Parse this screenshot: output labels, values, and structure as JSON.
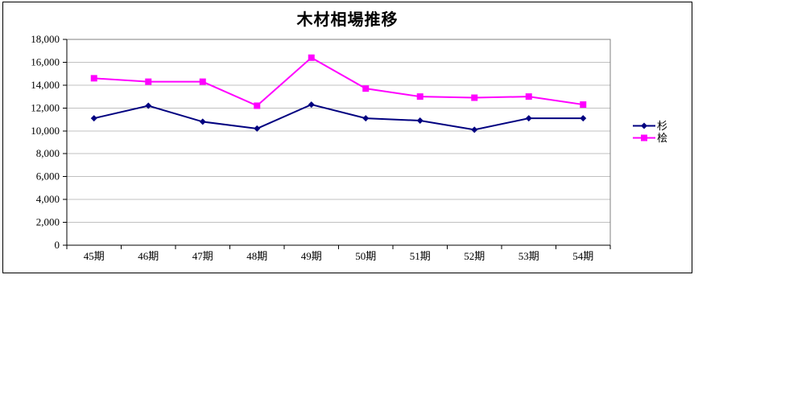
{
  "window": {
    "background": "#FFFFFF"
  },
  "chart_data": {
    "type": "line",
    "title": "木材相場推移",
    "xlabel": "",
    "ylabel": "",
    "categories": [
      "45期",
      "46期",
      "47期",
      "48期",
      "49期",
      "50期",
      "51期",
      "52期",
      "53期",
      "54期"
    ],
    "series": [
      {
        "name": "杉",
        "marker": "diamond",
        "color": "#000080",
        "values": [
          11100,
          12200,
          10800,
          10200,
          12300,
          11100,
          10900,
          10100,
          11100,
          11100
        ]
      },
      {
        "name": "桧",
        "marker": "square",
        "color": "#FF00FF",
        "values": [
          14600,
          14300,
          14300,
          12200,
          16400,
          13700,
          13000,
          12900,
          13000,
          12300
        ]
      }
    ],
    "ylim": [
      0,
      18000
    ],
    "ytick_step": 2000,
    "grid": "horizontal",
    "legend_position": "right",
    "colors": {
      "gridline": "#C0C0C0",
      "plot_border": "#808080",
      "axis": "#000000",
      "plot_background": "#FFFFFF"
    }
  }
}
